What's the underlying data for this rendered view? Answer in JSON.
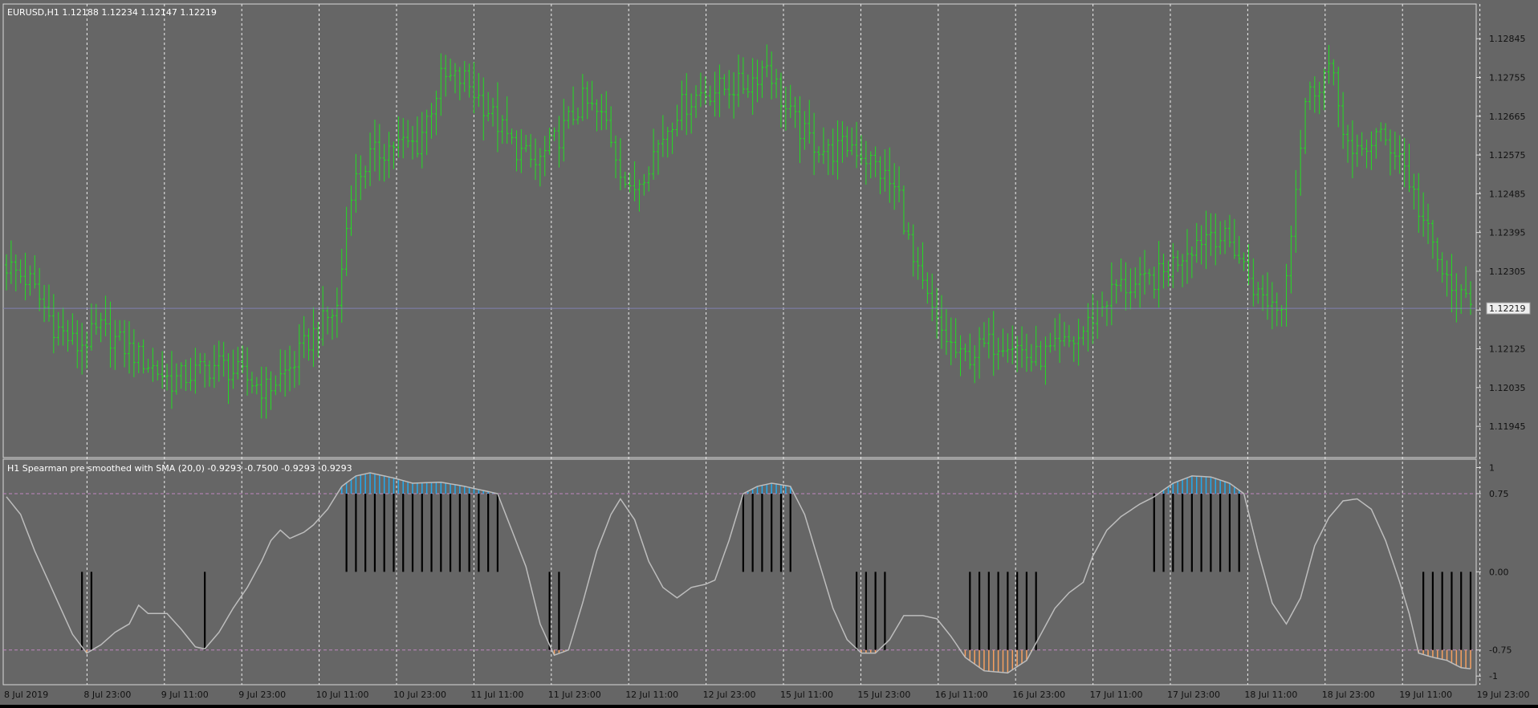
{
  "symbol_label": "EURUSD,H1  1.12188 1.12234 1.12147 1.12219",
  "indicator_label": "H1 Spearman pre smoothed with SMA (20,0) -0.9293 -0.7500 -0.9293 -0.9293",
  "current_price_label": "1.12219",
  "colors": {
    "background": "#666666",
    "candle": "#22dd22",
    "grid": "#eeeeee",
    "osc_line": "#bdbdbd",
    "level_line": "#c086c0",
    "upper_fill": "#22aaee",
    "lower_fill": "#f5a060",
    "hist_bar": "#000000",
    "price_line": "#8080b0"
  },
  "chart_data": [
    {
      "type": "ohlc",
      "title": "EURUSD,H1",
      "y_ticks": [
        "1.12845",
        "1.12755",
        "1.12665",
        "1.12575",
        "1.12485",
        "1.12395",
        "1.12305",
        "1.12215",
        "1.12125",
        "1.12035",
        "1.11945"
      ],
      "x_ticks": [
        "8 Jul 2019",
        "8 Jul 23:00",
        "9 Jul 11:00",
        "9 Jul 23:00",
        "10 Jul 11:00",
        "10 Jul 23:00",
        "11 Jul 11:00",
        "11 Jul 23:00",
        "12 Jul 11:00",
        "12 Jul 23:00",
        "15 Jul 11:00",
        "15 Jul 23:00",
        "16 Jul 11:00",
        "16 Jul 23:00",
        "17 Jul 11:00",
        "17 Jul 23:00",
        "18 Jul 11:00",
        "18 Jul 23:00",
        "19 Jul 11:00",
        "19 Jul 23:00"
      ],
      "ylim": [
        1.1188,
        1.1292
      ],
      "last_price": 1.12219,
      "close_path": [
        [
          0,
          1.1232
        ],
        [
          5,
          1.1228
        ],
        [
          10,
          1.1218
        ],
        [
          15,
          1.1213
        ],
        [
          20,
          1.1217
        ],
        [
          25,
          1.1213
        ],
        [
          30,
          1.1209
        ],
        [
          35,
          1.1205
        ],
        [
          40,
          1.1207
        ],
        [
          45,
          1.1209
        ],
        [
          50,
          1.1206
        ],
        [
          55,
          1.1203
        ],
        [
          60,
          1.1208
        ],
        [
          65,
          1.1216
        ],
        [
          70,
          1.1222
        ],
        [
          73,
          1.125
        ],
        [
          77,
          1.1257
        ],
        [
          82,
          1.126
        ],
        [
          87,
          1.126
        ],
        [
          92,
          1.1275
        ],
        [
          97,
          1.1275
        ],
        [
          102,
          1.1268
        ],
        [
          107,
          1.126
        ],
        [
          112,
          1.1255
        ],
        [
          117,
          1.1262
        ],
        [
          122,
          1.127
        ],
        [
          127,
          1.1265
        ],
        [
          132,
          1.1248
        ],
        [
          137,
          1.1258
        ],
        [
          142,
          1.1268
        ],
        [
          147,
          1.1272
        ],
        [
          152,
          1.1273
        ],
        [
          157,
          1.1274
        ],
        [
          161,
          1.1279
        ],
        [
          165,
          1.1268
        ],
        [
          169,
          1.1262
        ],
        [
          174,
          1.1258
        ],
        [
          179,
          1.126
        ],
        [
          184,
          1.1255
        ],
        [
          189,
          1.1248
        ],
        [
          192,
          1.1232
        ],
        [
          197,
          1.1218
        ],
        [
          202,
          1.121
        ],
        [
          207,
          1.1213
        ],
        [
          212,
          1.1215
        ],
        [
          217,
          1.121
        ],
        [
          222,
          1.1212
        ],
        [
          227,
          1.1215
        ],
        [
          230,
          1.122
        ],
        [
          235,
          1.1227
        ],
        [
          240,
          1.1227
        ],
        [
          245,
          1.123
        ],
        [
          250,
          1.1236
        ],
        [
          255,
          1.124
        ],
        [
          260,
          1.1236
        ],
        [
          265,
          1.1225
        ],
        [
          270,
          1.1222
        ],
        [
          275,
          1.127
        ],
        [
          280,
          1.1278
        ],
        [
          285,
          1.1256
        ],
        [
          290,
          1.1262
        ],
        [
          295,
          1.1258
        ],
        [
          299,
          1.1245
        ],
        [
          303,
          1.1233
        ],
        [
          306,
          1.1225
        ],
        [
          310,
          1.1222
        ]
      ]
    },
    {
      "type": "line",
      "title": "H1 Spearman pre smoothed with SMA (20,0)",
      "y_ticks": [
        "1",
        "0.75",
        "0.00",
        "-0.75",
        "-1"
      ],
      "ylim": [
        -1.06,
        1.05
      ],
      "levels": [
        0.75,
        -0.75
      ],
      "osc_path": [
        [
          0,
          0.72
        ],
        [
          3,
          0.55
        ],
        [
          6,
          0.2
        ],
        [
          10,
          -0.2
        ],
        [
          14,
          -0.6
        ],
        [
          17,
          -0.78
        ],
        [
          20,
          -0.7
        ],
        [
          23,
          -0.58
        ],
        [
          26,
          -0.5
        ],
        [
          28,
          -0.32
        ],
        [
          30,
          -0.4
        ],
        [
          34,
          -0.4
        ],
        [
          37,
          -0.55
        ],
        [
          40,
          -0.72
        ],
        [
          42,
          -0.74
        ],
        [
          45,
          -0.58
        ],
        [
          48,
          -0.35
        ],
        [
          51,
          -0.15
        ],
        [
          54,
          0.1
        ],
        [
          56,
          0.3
        ],
        [
          58,
          0.4
        ],
        [
          60,
          0.32
        ],
        [
          63,
          0.38
        ],
        [
          65,
          0.45
        ],
        [
          68,
          0.6
        ],
        [
          71,
          0.82
        ],
        [
          74,
          0.92
        ],
        [
          77,
          0.95
        ],
        [
          82,
          0.9
        ],
        [
          86,
          0.85
        ],
        [
          92,
          0.86
        ],
        [
          97,
          0.82
        ],
        [
          101,
          0.78
        ],
        [
          104,
          0.75
        ],
        [
          107,
          0.4
        ],
        [
          110,
          0.05
        ],
        [
          113,
          -0.5
        ],
        [
          116,
          -0.8
        ],
        [
          119,
          -0.75
        ],
        [
          122,
          -0.3
        ],
        [
          125,
          0.2
        ],
        [
          128,
          0.55
        ],
        [
          130,
          0.7
        ],
        [
          133,
          0.5
        ],
        [
          136,
          0.1
        ],
        [
          139,
          -0.15
        ],
        [
          142,
          -0.25
        ],
        [
          145,
          -0.15
        ],
        [
          148,
          -0.12
        ],
        [
          150,
          -0.08
        ],
        [
          153,
          0.3
        ],
        [
          156,
          0.75
        ],
        [
          159,
          0.82
        ],
        [
          162,
          0.85
        ],
        [
          166,
          0.82
        ],
        [
          169,
          0.55
        ],
        [
          172,
          0.1
        ],
        [
          175,
          -0.35
        ],
        [
          178,
          -0.65
        ],
        [
          181,
          -0.78
        ],
        [
          184,
          -0.78
        ],
        [
          187,
          -0.65
        ],
        [
          190,
          -0.42
        ],
        [
          194,
          -0.42
        ],
        [
          197,
          -0.45
        ],
        [
          200,
          -0.62
        ],
        [
          203,
          -0.82
        ],
        [
          207,
          -0.95
        ],
        [
          212,
          -0.97
        ],
        [
          216,
          -0.85
        ],
        [
          219,
          -0.6
        ],
        [
          222,
          -0.35
        ],
        [
          225,
          -0.2
        ],
        [
          228,
          -0.1
        ],
        [
          230,
          0.15
        ],
        [
          233,
          0.4
        ],
        [
          236,
          0.53
        ],
        [
          240,
          0.65
        ],
        [
          243,
          0.72
        ],
        [
          247,
          0.85
        ],
        [
          251,
          0.92
        ],
        [
          255,
          0.91
        ],
        [
          259,
          0.85
        ],
        [
          262,
          0.75
        ],
        [
          265,
          0.2
        ],
        [
          268,
          -0.3
        ],
        [
          271,
          -0.5
        ],
        [
          274,
          -0.25
        ],
        [
          277,
          0.25
        ],
        [
          280,
          0.52
        ],
        [
          283,
          0.68
        ],
        [
          286,
          0.7
        ],
        [
          289,
          0.6
        ],
        [
          292,
          0.3
        ],
        [
          295,
          -0.1
        ],
        [
          297,
          -0.4
        ],
        [
          299,
          -0.78
        ],
        [
          302,
          -0.82
        ],
        [
          305,
          -0.85
        ],
        [
          308,
          -0.92
        ],
        [
          310,
          -0.93
        ]
      ],
      "histogram_ranges": [
        [
          16,
          19
        ],
        [
          42,
          42
        ],
        [
          72,
          104
        ],
        [
          115,
          118
        ],
        [
          156,
          166
        ],
        [
          180,
          186
        ],
        [
          204,
          219
        ],
        [
          243,
          262
        ],
        [
          300,
          310
        ]
      ]
    }
  ]
}
